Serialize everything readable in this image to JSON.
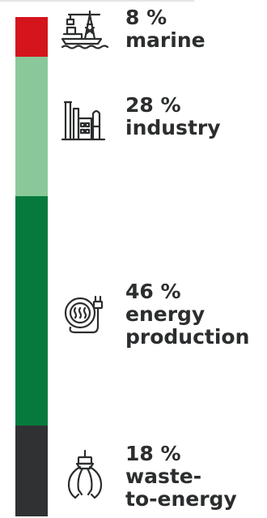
{
  "chart_data": {
    "type": "stacked-bar",
    "segments": [
      {
        "percent": 8,
        "value_label": "8 %",
        "category": "marine",
        "color": "#d4151c",
        "icon": "offshore-platform-icon"
      },
      {
        "percent": 28,
        "value_label": "28 %",
        "category": "industry",
        "color": "#8ac89a",
        "icon": "factory-icon"
      },
      {
        "percent": 46,
        "value_label": "46 %",
        "category": "energy\nproduction",
        "color": "#067a3c",
        "icon": "power-plug-coil-icon"
      },
      {
        "percent": 18,
        "value_label": "18 %",
        "category": "waste-\nto-energy",
        "color": "#2f3133",
        "icon": "grab-claw-icon"
      }
    ]
  },
  "theme": {
    "text_color": "#2b2d2e",
    "icon_color": "#2b2d2e"
  }
}
